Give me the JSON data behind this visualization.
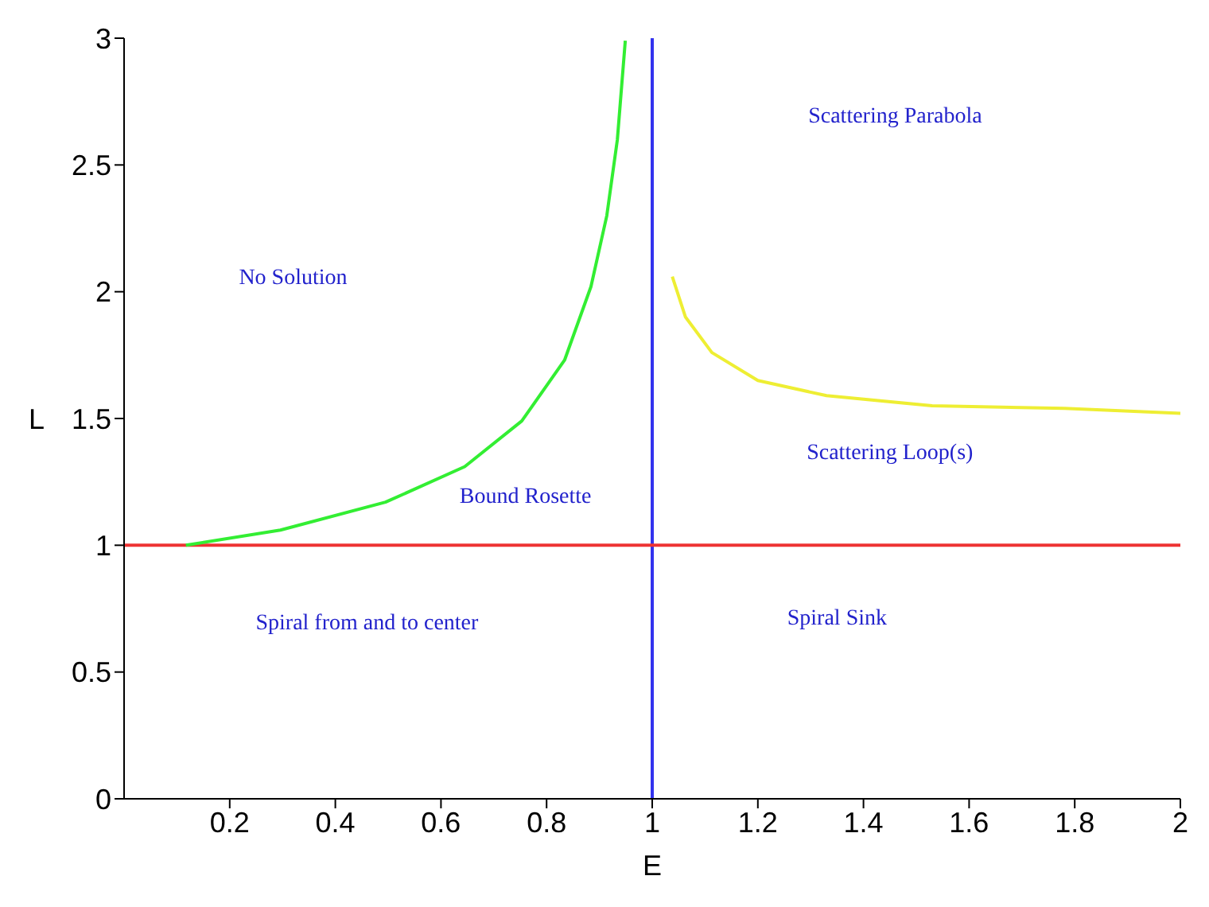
{
  "chart_data": {
    "type": "line",
    "xlabel": "E",
    "ylabel": "L",
    "xlim": [
      0,
      2
    ],
    "ylim": [
      0,
      3
    ],
    "xticks": [
      0.2,
      0.4,
      0.6,
      0.8,
      1,
      1.2,
      1.4,
      1.6,
      1.8,
      2
    ],
    "yticks": [
      0,
      0.5,
      1,
      1.5,
      2,
      2.5,
      3
    ],
    "grid": false,
    "marker": "none",
    "line_style": "solid",
    "series": [
      {
        "color": "#33ee33",
        "x": [
          0.117,
          0.296,
          0.495,
          0.645,
          0.753,
          0.834,
          0.884,
          0.914,
          0.934,
          0.949
        ],
        "values": [
          1.0,
          1.06,
          1.17,
          1.31,
          1.49,
          1.73,
          2.02,
          2.3,
          2.6,
          2.99
        ]
      },
      {
        "color": "#eeee33",
        "x": [
          1.038,
          1.063,
          1.113,
          1.2,
          1.33,
          1.53,
          1.78,
          2.0
        ],
        "values": [
          2.06,
          1.9,
          1.76,
          1.65,
          1.59,
          1.55,
          1.54,
          1.52
        ]
      }
    ],
    "ref_lines": [
      {
        "axis": "x",
        "value": 1,
        "color": "#3333ee"
      },
      {
        "axis": "y",
        "value": 1,
        "color": "#ee3333"
      }
    ],
    "annotations": [
      "No Solution",
      "Bound Rosette",
      "Scattering Parabola",
      "Scattering Loop(s)",
      "Spiral from and to center",
      "Spiral Sink"
    ]
  }
}
